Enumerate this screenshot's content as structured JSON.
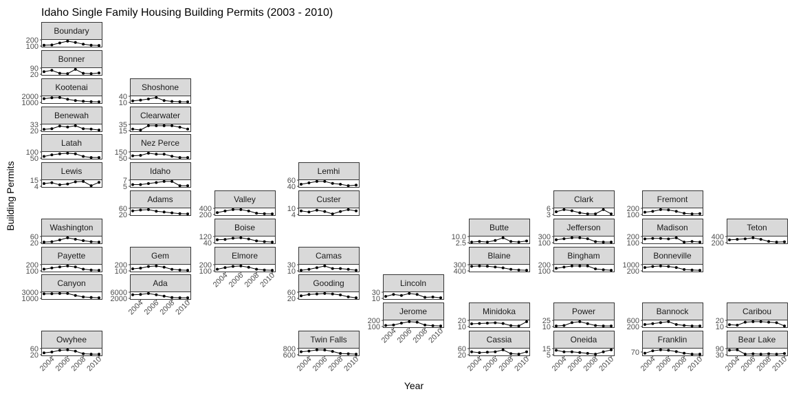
{
  "chart_data": {
    "type": "line",
    "title": "Idaho Single Family Housing Building Permits (2003 - 2010)",
    "xlabel": "Year",
    "ylabel": "Building Permits",
    "x": [
      2003,
      2004,
      2005,
      2006,
      2007,
      2008,
      2009,
      2010
    ],
    "x_tick_labels": [
      "2004",
      "2006",
      "2008",
      "2010"
    ],
    "panels": [
      {
        "county": "Boundary",
        "y_ticks": [
          "200",
          "100"
        ],
        "values": [
          60,
          70,
          150,
          220,
          170,
          100,
          60,
          50
        ]
      },
      {
        "county": "Bonner",
        "y_ticks": [
          "90",
          "20"
        ],
        "values": [
          110,
          150,
          60,
          50,
          180,
          60,
          50,
          70
        ]
      },
      {
        "county": "Kootenai",
        "y_ticks": [
          "2000",
          "1000"
        ],
        "values": [
          1900,
          2300,
          2400,
          1600,
          1000,
          700,
          500,
          450
        ]
      },
      {
        "county": "Benewah",
        "y_ticks": [
          "33",
          "20"
        ],
        "values": [
          16,
          20,
          36,
          30,
          38,
          20,
          18,
          12
        ]
      },
      {
        "county": "Latah",
        "y_ticks": [
          "100",
          "50"
        ],
        "values": [
          60,
          90,
          110,
          120,
          110,
          60,
          40,
          40
        ]
      },
      {
        "county": "Lewis",
        "y_ticks": [
          "15",
          "4"
        ],
        "values": [
          9,
          11,
          6,
          8,
          13,
          14,
          4,
          12
        ]
      },
      {
        "county": "Shoshone",
        "y_ticks": [
          "40",
          "10"
        ],
        "values": [
          15,
          25,
          38,
          55,
          20,
          10,
          6,
          5
        ]
      },
      {
        "county": "Clearwater",
        "y_ticks": [
          "35",
          "15"
        ],
        "values": [
          18,
          15,
          30,
          30,
          30,
          30,
          25,
          18
        ]
      },
      {
        "county": "Nez Perce",
        "y_ticks": [
          "150",
          "50"
        ],
        "values": [
          100,
          110,
          160,
          140,
          140,
          90,
          60,
          60
        ]
      },
      {
        "county": "Idaho",
        "y_ticks": [
          "7",
          "5"
        ],
        "values": [
          4,
          4,
          5,
          6,
          7,
          7,
          3,
          3
        ]
      },
      {
        "county": "Adams",
        "y_ticks": [
          "60",
          "20"
        ],
        "values": [
          50,
          60,
          65,
          45,
          35,
          25,
          15,
          12
        ]
      },
      {
        "county": "Washington",
        "y_ticks": [
          "60",
          "20"
        ],
        "values": [
          10,
          15,
          40,
          70,
          50,
          30,
          15,
          10
        ]
      },
      {
        "county": "Payette",
        "y_ticks": [
          "200",
          "100"
        ],
        "values": [
          100,
          150,
          200,
          240,
          200,
          100,
          60,
          50
        ]
      },
      {
        "county": "Gem",
        "y_ticks": [
          "200",
          "100"
        ],
        "values": [
          100,
          130,
          200,
          220,
          170,
          80,
          50,
          40
        ]
      },
      {
        "county": "Canyon",
        "y_ticks": [
          "3000",
          "1000"
        ],
        "values": [
          3200,
          3300,
          3400,
          3400,
          2200,
          1200,
          900,
          700
        ]
      },
      {
        "county": "Ada",
        "y_ticks": [
          "6000",
          "2000"
        ],
        "values": [
          4500,
          5000,
          6000,
          4500,
          3000,
          1500,
          1200,
          1200
        ]
      },
      {
        "county": "Valley",
        "y_ticks": [
          "400",
          "200"
        ],
        "values": [
          150,
          300,
          420,
          420,
          300,
          100,
          50,
          40
        ]
      },
      {
        "county": "Boise",
        "y_ticks": [
          "120",
          "40"
        ],
        "values": [
          90,
          100,
          130,
          140,
          110,
          60,
          40,
          30
        ]
      },
      {
        "county": "Elmore",
        "y_ticks": [
          "200",
          "100"
        ],
        "values": [
          100,
          180,
          240,
          260,
          200,
          100,
          60,
          50
        ]
      },
      {
        "county": "Owyhee",
        "y_ticks": [
          "60",
          "20"
        ],
        "values": [
          30,
          40,
          60,
          65,
          50,
          20,
          15,
          15
        ]
      },
      {
        "county": "Lemhi",
        "y_ticks": [
          "60",
          "40"
        ],
        "values": [
          45,
          50,
          55,
          55,
          48,
          45,
          40,
          42
        ]
      },
      {
        "county": "Custer",
        "y_ticks": [
          "10",
          "4"
        ],
        "values": [
          10,
          8,
          11,
          9,
          5,
          9,
          12,
          10
        ]
      },
      {
        "county": "Camas",
        "y_ticks": [
          "30",
          "10"
        ],
        "values": [
          10,
          15,
          25,
          35,
          20,
          20,
          15,
          10
        ]
      },
      {
        "county": "Gooding",
        "y_ticks": [
          "60",
          "20"
        ],
        "values": [
          40,
          55,
          60,
          65,
          60,
          50,
          30,
          20
        ]
      },
      {
        "county": "Twin Falls",
        "y_ticks": [
          "800",
          "600"
        ],
        "values": [
          550,
          650,
          820,
          800,
          600,
          300,
          250,
          200
        ]
      },
      {
        "county": "Lincoln",
        "y_ticks": [
          "30",
          "10"
        ],
        "values": [
          15,
          25,
          20,
          30,
          25,
          10,
          12,
          8
        ]
      },
      {
        "county": "Jerome",
        "y_ticks": [
          "200",
          "100"
        ],
        "values": [
          60,
          80,
          160,
          220,
          200,
          80,
          50,
          40
        ]
      },
      {
        "county": "Butte",
        "y_ticks": [
          "10.0",
          "2.5"
        ],
        "values": [
          2,
          3,
          2,
          5,
          10,
          3,
          2,
          4
        ]
      },
      {
        "county": "Blaine",
        "y_ticks": [
          "300",
          "400"
        ],
        "values": [
          450,
          480,
          460,
          380,
          300,
          150,
          80,
          60
        ]
      },
      {
        "county": "Minidoka",
        "y_ticks": [
          "20",
          "10"
        ],
        "values": [
          18,
          20,
          22,
          24,
          20,
          8,
          6,
          30
        ]
      },
      {
        "county": "Cassia",
        "y_ticks": [
          "60",
          "20"
        ],
        "values": [
          40,
          30,
          35,
          40,
          60,
          20,
          15,
          40
        ]
      },
      {
        "county": "Clark",
        "y_ticks": [
          "6",
          "3"
        ],
        "values": [
          3,
          5,
          4,
          2,
          1,
          1,
          5,
          1
        ]
      },
      {
        "county": "Jefferson",
        "y_ticks": [
          "300",
          "100"
        ],
        "values": [
          200,
          250,
          300,
          300,
          250,
          100,
          80,
          80
        ]
      },
      {
        "county": "Bingham",
        "y_ticks": [
          "200",
          "100"
        ],
        "values": [
          150,
          200,
          250,
          250,
          250,
          120,
          80,
          60
        ]
      },
      {
        "county": "Power",
        "y_ticks": [
          "25",
          "10"
        ],
        "values": [
          8,
          10,
          25,
          30,
          20,
          10,
          8,
          8
        ]
      },
      {
        "county": "Oneida",
        "y_ticks": [
          "15",
          "5"
        ],
        "values": [
          14,
          10,
          10,
          8,
          6,
          4,
          10,
          15
        ]
      },
      {
        "county": "Fremont",
        "y_ticks": [
          "200",
          "100"
        ],
        "values": [
          150,
          200,
          300,
          280,
          200,
          80,
          50,
          60
        ]
      },
      {
        "county": "Madison",
        "y_ticks": [
          "200",
          "100"
        ],
        "values": [
          200,
          220,
          220,
          200,
          240,
          80,
          100,
          80
        ]
      },
      {
        "county": "Bonneville",
        "y_ticks": [
          "1000",
          "200"
        ],
        "values": [
          800,
          1000,
          1100,
          1000,
          800,
          400,
          300,
          250
        ]
      },
      {
        "county": "Bannock",
        "y_ticks": [
          "600",
          "200"
        ],
        "values": [
          300,
          400,
          500,
          600,
          300,
          200,
          150,
          150
        ]
      },
      {
        "county": "Franklin",
        "y_ticks": [
          "70"
        ],
        "values": [
          50,
          80,
          90,
          85,
          70,
          50,
          40,
          40
        ]
      },
      {
        "county": "Teton",
        "y_ticks": [
          "400",
          "200"
        ],
        "values": [
          300,
          350,
          400,
          500,
          350,
          150,
          80,
          100
        ]
      },
      {
        "county": "Caribou",
        "y_ticks": [
          "20",
          "10"
        ],
        "values": [
          10,
          8,
          20,
          22,
          22,
          20,
          18,
          5
        ]
      },
      {
        "county": "Bear Lake",
        "y_ticks": [
          "90",
          "30"
        ],
        "values": [
          95,
          100,
          30,
          35,
          30,
          35,
          30,
          40
        ]
      }
    ]
  }
}
